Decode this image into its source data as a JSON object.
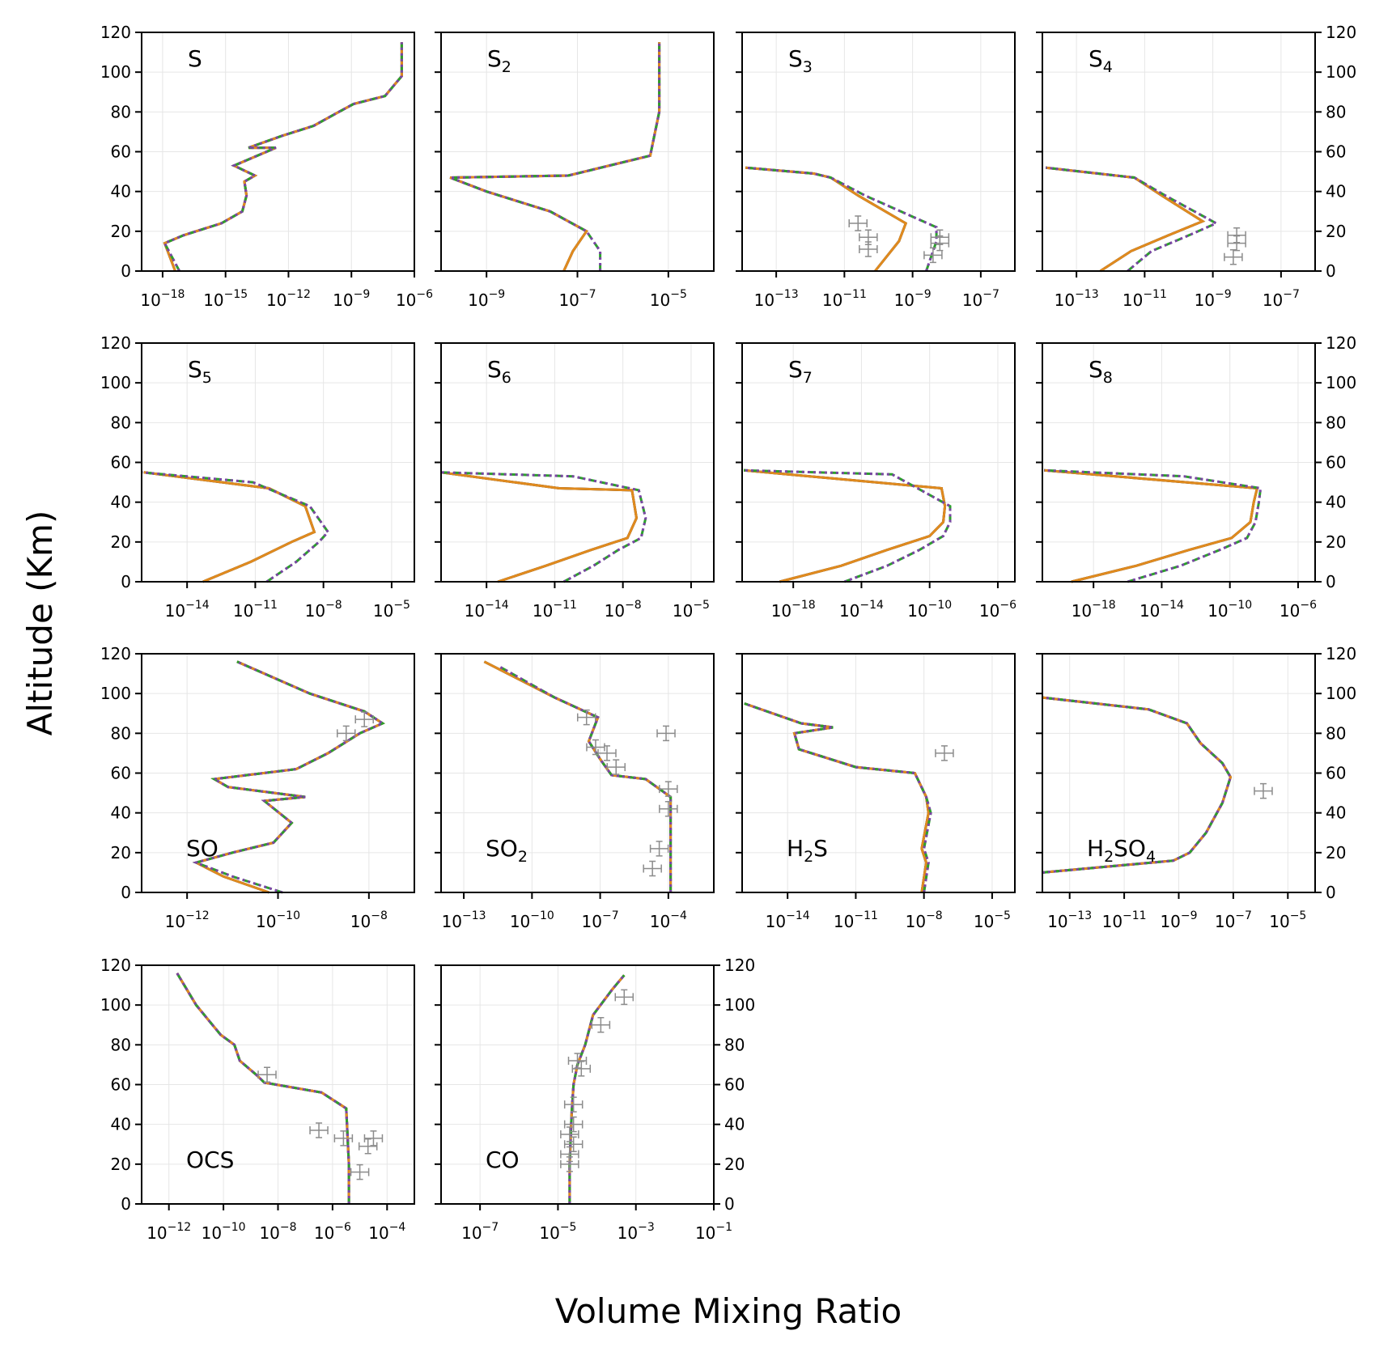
{
  "figure": {
    "xlabel": "Volume Mixing Ratio",
    "ylabel": "Altitude (Km)",
    "yticks": [
      0,
      20,
      40,
      60,
      80,
      100,
      120
    ]
  },
  "styles": {
    "black": "#000000",
    "orange": "#e08a1e",
    "green": "#2ca02c",
    "purple": "#7b45a6",
    "obs": "#8c8c8c",
    "grid": "#e6e6e6"
  },
  "chart_data": [
    {
      "type": "line",
      "label": "S",
      "sub": "",
      "xlim": [
        -19,
        -6
      ],
      "xticks": [
        -18,
        -15,
        -12,
        -9,
        -6
      ],
      "series": [
        {
          "x": [
            -17.4,
            -17.9,
            -17,
            -15.2,
            -14.2,
            -14,
            -14.1,
            -13.6,
            -14.6,
            -12.6,
            -13.9,
            -12.3,
            -10.8,
            -9.6,
            -8.9,
            -7.4,
            -6.6,
            -6.6
          ],
          "y": [
            0,
            14,
            18,
            24,
            30,
            38,
            45,
            48,
            53,
            62,
            62,
            68,
            73,
            80,
            84,
            88,
            98,
            115
          ]
        },
        {
          "x": [
            -17.2,
            -17.9,
            -17,
            -15.2,
            -14.2,
            -14,
            -14.1,
            -13.6,
            -14.6,
            -12.6,
            -13.9,
            -12.3,
            -10.8,
            -9.6,
            -8.9,
            -7.4,
            -6.6,
            -6.6
          ],
          "y": [
            0,
            14,
            18,
            24,
            30,
            38,
            45,
            48,
            53,
            62,
            62,
            68,
            73,
            80,
            84,
            88,
            98,
            115
          ]
        }
      ],
      "obs": []
    },
    {
      "type": "line",
      "label": "S",
      "sub": "2",
      "xlim": [
        -10,
        -4
      ],
      "xticks": [
        -9,
        -7,
        -5
      ],
      "series": [
        {
          "x": [
            -7.3,
            -7.1,
            -6.8,
            -7.6,
            -9,
            -9.8,
            -7.2,
            -5.4,
            -5.2,
            -5.2
          ],
          "y": [
            0,
            10,
            20,
            30,
            40,
            47,
            48,
            58,
            80,
            115
          ]
        },
        {
          "x": [
            -6.5,
            -6.5,
            -6.8,
            -7.6,
            -9,
            -9.8,
            -7.2,
            -5.4,
            -5.2,
            -5.2
          ],
          "y": [
            0,
            10,
            20,
            30,
            40,
            47,
            48,
            58,
            80,
            115
          ]
        }
      ],
      "obs": []
    },
    {
      "type": "line",
      "label": "S",
      "sub": "3",
      "xlim": [
        -14,
        -6
      ],
      "xticks": [
        -13,
        -11,
        -9,
        -7
      ],
      "series": [
        {
          "x": [
            -10.1,
            -9.4,
            -9.2,
            -10.6,
            -11.4,
            -11.9,
            -13.9
          ],
          "y": [
            0,
            15,
            24,
            38,
            47,
            49,
            52
          ]
        },
        {
          "x": [
            -8.6,
            -8.3,
            -8.3,
            -10.4,
            -11.4,
            -11.9,
            -13.9
          ],
          "y": [
            0,
            15,
            22,
            38,
            47,
            49,
            52
          ]
        }
      ],
      "obs": [
        {
          "x": -10.6,
          "y": 24
        },
        {
          "x": -10.3,
          "y": 17
        },
        {
          "x": -10.3,
          "y": 11
        },
        {
          "x": -8.2,
          "y": 17
        },
        {
          "x": -8.2,
          "y": 14
        },
        {
          "x": -8.4,
          "y": 8
        }
      ]
    },
    {
      "type": "line",
      "label": "S",
      "sub": "4",
      "xlim": [
        -14,
        -6
      ],
      "xticks": [
        -13,
        -11,
        -9,
        -7
      ],
      "series": [
        {
          "x": [
            -12.3,
            -11.4,
            -10.3,
            -9.3,
            -10.5,
            -11.3,
            -13.9
          ],
          "y": [
            0,
            10,
            18,
            25,
            38,
            47,
            52
          ]
        },
        {
          "x": [
            -11.5,
            -10.8,
            -9.7,
            -8.9,
            -10.4,
            -11.3,
            -13.9
          ],
          "y": [
            0,
            10,
            18,
            24,
            38,
            47,
            52
          ]
        }
      ],
      "obs": [
        {
          "x": -8.3,
          "y": 18
        },
        {
          "x": -8.3,
          "y": 14
        },
        {
          "x": -8.4,
          "y": 7
        }
      ]
    },
    {
      "type": "line",
      "label": "S",
      "sub": "5",
      "xlim": [
        -16,
        -4
      ],
      "xticks": [
        -14,
        -11,
        -8,
        -5
      ],
      "series": [
        {
          "x": [
            -13.3,
            -11.2,
            -9.4,
            -8.4,
            -8.8,
            -10.4,
            -15.9
          ],
          "y": [
            0,
            10,
            20,
            25,
            38,
            47,
            55
          ]
        },
        {
          "x": [
            -10.5,
            -9.2,
            -8.2,
            -7.8,
            -8.6,
            -11.1,
            -16
          ],
          "y": [
            0,
            10,
            20,
            25,
            38,
            50,
            55
          ]
        }
      ],
      "obs": []
    },
    {
      "type": "line",
      "label": "S",
      "sub": "6",
      "xlim": [
        -16,
        -4
      ],
      "xticks": [
        -14,
        -11,
        -8,
        -5
      ],
      "series": [
        {
          "x": [
            -13.5,
            -11.4,
            -9.4,
            -7.8,
            -7.4,
            -7.6,
            -10.8,
            -16
          ],
          "y": [
            0,
            8,
            16,
            22,
            32,
            46,
            47,
            55
          ]
        },
        {
          "x": [
            -10.6,
            -9.3,
            -8.2,
            -7.2,
            -7,
            -7.3,
            -10.2,
            -16
          ],
          "y": [
            0,
            8,
            16,
            22,
            32,
            46,
            53,
            55
          ]
        }
      ],
      "obs": []
    },
    {
      "type": "line",
      "label": "S",
      "sub": "7",
      "xlim": [
        -21,
        -5
      ],
      "xticks": [
        -18,
        -14,
        -10,
        -6
      ],
      "series": [
        {
          "x": [
            -18.8,
            -15.2,
            -12.5,
            -10,
            -9.2,
            -9.1,
            -9.3,
            -20.9
          ],
          "y": [
            0,
            8,
            16,
            23,
            30,
            38,
            47,
            56
          ]
        },
        {
          "x": [
            -15,
            -12.5,
            -10.6,
            -9.2,
            -8.8,
            -8.8,
            -12.2,
            -20.9
          ],
          "y": [
            0,
            8,
            16,
            23,
            30,
            38,
            54,
            56
          ]
        }
      ],
      "obs": []
    },
    {
      "type": "line",
      "label": "S",
      "sub": "8",
      "xlim": [
        -21,
        -5
      ],
      "xticks": [
        -18,
        -14,
        -10,
        -6
      ],
      "series": [
        {
          "x": [
            -19.3,
            -15.5,
            -12.4,
            -9.9,
            -8.8,
            -8.6,
            -8.4,
            -20.9
          ],
          "y": [
            0,
            8,
            16,
            22,
            30,
            40,
            47,
            56
          ]
        },
        {
          "x": [
            -16,
            -12.9,
            -10.6,
            -9,
            -8.5,
            -8.3,
            -8.2,
            -12.7,
            -20.9
          ],
          "y": [
            0,
            8,
            16,
            22,
            30,
            40,
            47,
            53,
            56
          ]
        }
      ],
      "obs": []
    },
    {
      "type": "line",
      "label": "SO",
      "sub": "",
      "xlim": [
        -13,
        -7
      ],
      "xticks": [
        -12,
        -10,
        -8
      ],
      "series": [
        {
          "x": [
            -10.2,
            -11.2,
            -11.8,
            -11,
            -10.1,
            -9.7,
            -10.3,
            -9.4,
            -11.1,
            -11.4,
            -9.6,
            -8.9,
            -8.2,
            -7.7,
            -8.1,
            -9.3,
            -10.9
          ],
          "y": [
            0,
            8,
            15,
            20,
            25,
            35,
            46,
            48,
            53,
            57,
            62,
            70,
            80,
            85,
            91,
            100,
            116
          ]
        },
        {
          "x": [
            -9.9,
            -11,
            -11.8,
            -11,
            -10.1,
            -9.7,
            -10.3,
            -9.4,
            -11.1,
            -11.4,
            -9.6,
            -8.9,
            -8.2,
            -7.7,
            -8.1,
            -9.3,
            -10.9
          ],
          "y": [
            0,
            8,
            15,
            20,
            25,
            35,
            46,
            48,
            53,
            57,
            62,
            70,
            80,
            85,
            91,
            100,
            116
          ]
        }
      ],
      "obs": [
        {
          "x": -8.5,
          "y": 80
        },
        {
          "x": -8.1,
          "y": 87
        }
      ]
    },
    {
      "type": "line",
      "label": "SO",
      "sub": "2",
      "xlim": [
        -14,
        -2
      ],
      "xticks": [
        -13,
        -10,
        -7,
        -4
      ],
      "series": [
        {
          "x": [
            -3.9,
            -3.9,
            -3.9,
            -5,
            -6.5,
            -7,
            -7.5,
            -7.1,
            -9,
            -12.1
          ],
          "y": [
            0,
            20,
            48,
            57,
            59,
            67,
            76,
            88,
            98,
            116
          ]
        },
        {
          "x": [
            -3.9,
            -3.9,
            -3.9,
            -5,
            -6.5,
            -7,
            -7.5,
            -7.1,
            -9,
            -11.5
          ],
          "y": [
            0,
            20,
            48,
            57,
            59,
            67,
            76,
            88,
            98,
            114
          ]
        }
      ],
      "obs": [
        {
          "x": -7.6,
          "y": 88
        },
        {
          "x": -4.1,
          "y": 80
        },
        {
          "x": -7.2,
          "y": 73
        },
        {
          "x": -6.7,
          "y": 70
        },
        {
          "x": -6.3,
          "y": 63
        },
        {
          "x": -4,
          "y": 52
        },
        {
          "x": -4,
          "y": 42
        },
        {
          "x": -4.4,
          "y": 22
        },
        {
          "x": -4.7,
          "y": 12
        }
      ]
    },
    {
      "type": "line",
      "label": "H",
      "sub": "2",
      "label2": "S",
      "xlim": [
        -16,
        -4
      ],
      "xticks": [
        -14,
        -11,
        -8,
        -5
      ],
      "series": [
        {
          "x": [
            -8.1,
            -7.9,
            -8.1,
            -7.8,
            -7.9,
            -8.4,
            -11,
            -13.5,
            -13.7,
            -12,
            -13.4,
            -15.9
          ],
          "y": [
            0,
            15,
            22,
            40,
            48,
            60,
            63,
            72,
            80,
            83,
            85,
            95
          ]
        },
        {
          "x": [
            -8,
            -7.8,
            -8,
            -7.7,
            -7.9,
            -8.4,
            -11,
            -13.5,
            -13.7,
            -12,
            -13.4,
            -15.9
          ],
          "y": [
            0,
            15,
            22,
            40,
            48,
            60,
            63,
            72,
            80,
            83,
            85,
            95
          ]
        }
      ],
      "obs": [
        {
          "x": -7.1,
          "y": 70
        }
      ]
    },
    {
      "type": "line",
      "label": "H",
      "sub": "2",
      "label2": "SO",
      "sub2": "4",
      "xlim": [
        -14,
        -4
      ],
      "xticks": [
        -13,
        -11,
        -9,
        -7,
        -5
      ],
      "series": [
        {
          "x": [
            -14,
            -9.2,
            -8.6,
            -8,
            -7.4,
            -7.1,
            -7.4,
            -8.2,
            -8.7,
            -10.1,
            -14
          ],
          "y": [
            10,
            16,
            20,
            30,
            45,
            58,
            65,
            75,
            85,
            92,
            98
          ]
        },
        {
          "x": [
            -14,
            -9.2,
            -8.6,
            -8,
            -7.4,
            -7.1,
            -7.4,
            -8.2,
            -8.7,
            -10.1,
            -14
          ],
          "y": [
            10,
            16,
            20,
            30,
            45,
            58,
            65,
            75,
            85,
            92,
            98
          ]
        }
      ],
      "obs": [
        {
          "x": -5.9,
          "y": 51
        }
      ]
    },
    {
      "type": "line",
      "label": "OCS",
      "sub": "",
      "xlim": [
        -13,
        -3
      ],
      "xticks": [
        -12,
        -10,
        -8,
        -6,
        -4
      ],
      "series": [
        {
          "x": [
            -5.4,
            -5.4,
            -5.5,
            -6.4,
            -8.5,
            -8.8,
            -9.4,
            -9.6,
            -10.1,
            -10.4,
            -11,
            -11.7
          ],
          "y": [
            0,
            20,
            48,
            56,
            61,
            65,
            72,
            80,
            85,
            90,
            100,
            116
          ]
        },
        {
          "x": [
            -5.4,
            -5.4,
            -5.5,
            -6.4,
            -8.5,
            -8.8,
            -9.4,
            -9.6,
            -10.1,
            -10.4,
            -11,
            -11.7
          ],
          "y": [
            0,
            20,
            48,
            56,
            61,
            65,
            72,
            80,
            85,
            90,
            100,
            116
          ]
        }
      ],
      "obs": [
        {
          "x": -8.4,
          "y": 65
        },
        {
          "x": -6.5,
          "y": 37
        },
        {
          "x": -5.6,
          "y": 33
        },
        {
          "x": -4.5,
          "y": 33
        },
        {
          "x": -4.7,
          "y": 29
        },
        {
          "x": -5,
          "y": 16
        }
      ]
    },
    {
      "type": "line",
      "label": "CO",
      "sub": "",
      "xlim": [
        -8,
        -1
      ],
      "xticks": [
        -7,
        -5,
        -3,
        -1
      ],
      "series": [
        {
          "x": [
            -4.7,
            -4.7,
            -4.65,
            -4.6,
            -4.5,
            -4.3,
            -4.1,
            -3.6,
            -3.3
          ],
          "y": [
            0,
            20,
            45,
            60,
            70,
            80,
            95,
            108,
            115
          ]
        },
        {
          "x": [
            -4.7,
            -4.7,
            -4.65,
            -4.6,
            -4.5,
            -4.3,
            -4.1,
            -3.6,
            -3.3
          ],
          "y": [
            0,
            20,
            45,
            60,
            70,
            80,
            95,
            108,
            115
          ]
        }
      ],
      "obs": [
        {
          "x": -3.3,
          "y": 104
        },
        {
          "x": -3.9,
          "y": 90
        },
        {
          "x": -4.5,
          "y": 72
        },
        {
          "x": -4.4,
          "y": 68
        },
        {
          "x": -4.6,
          "y": 50
        },
        {
          "x": -4.6,
          "y": 40
        },
        {
          "x": -4.7,
          "y": 35
        },
        {
          "x": -4.6,
          "y": 30
        },
        {
          "x": -4.7,
          "y": 25
        },
        {
          "x": -4.7,
          "y": 20
        }
      ]
    }
  ]
}
